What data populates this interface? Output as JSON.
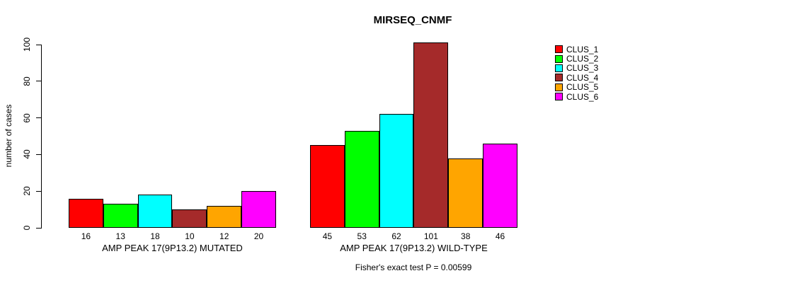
{
  "title": "MIRSEQ_CNMF",
  "ylabel": "number of cases",
  "footer": "Fisher's exact test P = 0.00599",
  "colors": {
    "axis": "#000000",
    "background": "#ffffff",
    "text": "#000000"
  },
  "legend": {
    "position": "right",
    "items": [
      {
        "label": "CLUS_1",
        "color": "#FF0000"
      },
      {
        "label": "CLUS_2",
        "color": "#00FF00"
      },
      {
        "label": "CLUS_3",
        "color": "#00FFFF"
      },
      {
        "label": "CLUS_4",
        "color": "#A52A2A"
      },
      {
        "label": "CLUS_5",
        "color": "#FFA500"
      },
      {
        "label": "CLUS_6",
        "color": "#FF00FF"
      }
    ]
  },
  "chart_data": {
    "type": "bar",
    "title": "MIRSEQ_CNMF",
    "xlabel": "",
    "ylabel": "number of cases",
    "ylim": [
      0,
      100
    ],
    "yticks": [
      0,
      20,
      40,
      60,
      80,
      100
    ],
    "grid": false,
    "legend_position": "right",
    "bar_value_labels": true,
    "categories": [
      "AMP PEAK 17(9P13.2) MUTATED",
      "AMP PEAK 17(9P13.2) WILD-TYPE"
    ],
    "series": [
      {
        "name": "CLUS_1",
        "color": "#FF0000",
        "values": [
          16,
          45
        ]
      },
      {
        "name": "CLUS_2",
        "color": "#00FF00",
        "values": [
          13,
          53
        ]
      },
      {
        "name": "CLUS_3",
        "color": "#00FFFF",
        "values": [
          18,
          62
        ]
      },
      {
        "name": "CLUS_4",
        "color": "#A52A2A",
        "values": [
          10,
          101
        ]
      },
      {
        "name": "CLUS_5",
        "color": "#FFA500",
        "values": [
          12,
          38
        ]
      },
      {
        "name": "CLUS_6",
        "color": "#FF00FF",
        "values": [
          20,
          46
        ]
      }
    ],
    "annotation": "Fisher's exact test P = 0.00599"
  }
}
